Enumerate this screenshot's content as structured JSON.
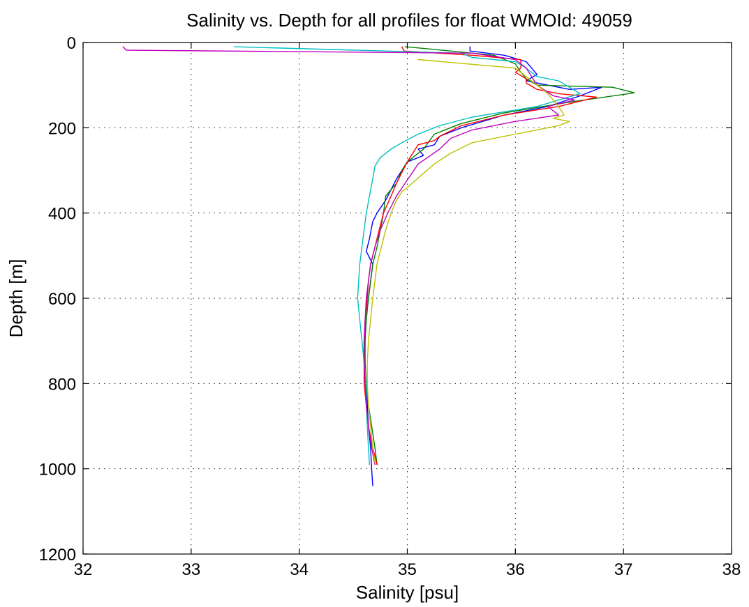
{
  "chart_data": {
    "type": "line",
    "title": "Salinity vs. Depth for all profiles for float WMOId: 49059",
    "xlabel": "Salinity [psu]",
    "ylabel": "Depth [m]",
    "xlim": [
      32,
      38
    ],
    "ylim": [
      0,
      1200
    ],
    "y_reversed": true,
    "grid": true,
    "x_ticks": [
      32,
      33,
      34,
      35,
      36,
      37,
      38
    ],
    "y_ticks": [
      0,
      200,
      400,
      600,
      800,
      1000,
      1200
    ],
    "series": [
      {
        "color": "#0000ff",
        "points": [
          [
            35.58,
            10
          ],
          [
            35.58,
            20
          ],
          [
            35.9,
            30
          ],
          [
            36.1,
            45
          ],
          [
            36.15,
            60
          ],
          [
            36.2,
            75
          ],
          [
            36.1,
            90
          ],
          [
            36.5,
            110
          ],
          [
            36.8,
            105
          ],
          [
            36.6,
            125
          ],
          [
            36.3,
            150
          ],
          [
            35.9,
            170
          ],
          [
            35.5,
            200
          ],
          [
            35.3,
            220
          ],
          [
            35.25,
            240
          ],
          [
            35.1,
            250
          ],
          [
            35.15,
            265
          ],
          [
            35.0,
            280
          ],
          [
            34.9,
            320
          ],
          [
            34.8,
            370
          ],
          [
            34.72,
            400
          ],
          [
            34.68,
            420
          ],
          [
            34.65,
            460
          ],
          [
            34.62,
            490
          ],
          [
            34.68,
            520
          ],
          [
            34.66,
            560
          ],
          [
            34.64,
            600
          ],
          [
            34.62,
            650
          ],
          [
            34.6,
            700
          ],
          [
            34.6,
            750
          ],
          [
            34.62,
            800
          ],
          [
            34.63,
            850
          ],
          [
            34.64,
            900
          ],
          [
            34.66,
            950
          ],
          [
            34.67,
            1000
          ],
          [
            34.68,
            1040
          ]
        ]
      },
      {
        "color": "#008000",
        "points": [
          [
            34.98,
            10
          ],
          [
            35.2,
            15
          ],
          [
            35.8,
            30
          ],
          [
            36.0,
            50
          ],
          [
            36.05,
            70
          ],
          [
            36.1,
            85
          ],
          [
            36.2,
            100
          ],
          [
            36.9,
            105
          ],
          [
            37.1,
            118
          ],
          [
            36.5,
            140
          ],
          [
            35.9,
            165
          ],
          [
            35.5,
            190
          ],
          [
            35.25,
            215
          ],
          [
            35.15,
            250
          ],
          [
            35.0,
            280
          ],
          [
            34.95,
            300
          ],
          [
            34.9,
            330
          ],
          [
            34.8,
            360
          ],
          [
            34.78,
            400
          ],
          [
            34.75,
            440
          ],
          [
            34.72,
            480
          ],
          [
            34.68,
            520
          ],
          [
            34.66,
            560
          ],
          [
            34.64,
            600
          ],
          [
            34.62,
            650
          ],
          [
            34.61,
            700
          ],
          [
            34.61,
            750
          ],
          [
            34.62,
            800
          ],
          [
            34.64,
            850
          ],
          [
            34.67,
            900
          ],
          [
            34.7,
            950
          ],
          [
            34.72,
            990
          ]
        ]
      },
      {
        "color": "#ff0000",
        "points": [
          [
            34.95,
            10
          ],
          [
            34.97,
            20
          ],
          [
            35.6,
            30
          ],
          [
            36.05,
            40
          ],
          [
            36.05,
            60
          ],
          [
            36.0,
            70
          ],
          [
            36.1,
            85
          ],
          [
            36.1,
            95
          ],
          [
            36.2,
            110
          ],
          [
            36.4,
            120
          ],
          [
            36.75,
            128
          ],
          [
            36.4,
            150
          ],
          [
            35.9,
            170
          ],
          [
            35.5,
            195
          ],
          [
            35.3,
            220
          ],
          [
            35.25,
            230
          ],
          [
            35.1,
            240
          ],
          [
            35.0,
            280
          ],
          [
            34.9,
            330
          ],
          [
            34.85,
            360
          ],
          [
            34.78,
            400
          ],
          [
            34.74,
            440
          ],
          [
            34.7,
            480
          ],
          [
            34.66,
            520
          ],
          [
            34.64,
            560
          ],
          [
            34.63,
            600
          ],
          [
            34.61,
            650
          ],
          [
            34.6,
            700
          ],
          [
            34.6,
            750
          ],
          [
            34.6,
            800
          ],
          [
            34.62,
            850
          ],
          [
            34.64,
            900
          ],
          [
            34.68,
            950
          ],
          [
            34.72,
            990
          ]
        ]
      },
      {
        "color": "#00bfbf",
        "points": [
          [
            33.4,
            10
          ],
          [
            35.5,
            25
          ],
          [
            35.6,
            35
          ],
          [
            36.0,
            45
          ],
          [
            36.1,
            60
          ],
          [
            36.2,
            80
          ],
          [
            36.4,
            90
          ],
          [
            36.5,
            105
          ],
          [
            36.6,
            120
          ],
          [
            36.2,
            150
          ],
          [
            35.6,
            175
          ],
          [
            35.3,
            195
          ],
          [
            35.1,
            215
          ],
          [
            34.95,
            235
          ],
          [
            34.85,
            250
          ],
          [
            34.75,
            270
          ],
          [
            34.7,
            290
          ],
          [
            34.68,
            320
          ],
          [
            34.65,
            360
          ],
          [
            34.62,
            400
          ],
          [
            34.6,
            440
          ],
          [
            34.58,
            480
          ],
          [
            34.56,
            520
          ],
          [
            34.55,
            560
          ],
          [
            34.54,
            600
          ],
          [
            34.56,
            650
          ],
          [
            34.58,
            700
          ],
          [
            34.6,
            750
          ],
          [
            34.62,
            800
          ],
          [
            34.62,
            850
          ],
          [
            34.63,
            900
          ],
          [
            34.64,
            950
          ],
          [
            34.65,
            990
          ]
        ]
      },
      {
        "color": "#bf00bf",
        "points": [
          [
            32.37,
            10
          ],
          [
            32.4,
            18
          ],
          [
            35.6,
            25
          ],
          [
            36.0,
            40
          ],
          [
            36.1,
            60
          ],
          [
            36.15,
            80
          ],
          [
            36.2,
            100
          ],
          [
            36.35,
            125
          ],
          [
            36.55,
            135
          ],
          [
            36.3,
            150
          ],
          [
            36.35,
            160
          ],
          [
            36.4,
            170
          ],
          [
            36.0,
            185
          ],
          [
            35.6,
            205
          ],
          [
            35.4,
            225
          ],
          [
            35.3,
            250
          ],
          [
            35.1,
            285
          ],
          [
            34.98,
            330
          ],
          [
            34.9,
            360
          ],
          [
            34.82,
            400
          ],
          [
            34.75,
            440
          ],
          [
            34.7,
            480
          ],
          [
            34.66,
            520
          ],
          [
            34.64,
            560
          ],
          [
            34.62,
            600
          ],
          [
            34.61,
            650
          ],
          [
            34.6,
            700
          ],
          [
            34.6,
            750
          ],
          [
            34.61,
            800
          ],
          [
            34.62,
            850
          ],
          [
            34.64,
            900
          ],
          [
            34.67,
            950
          ],
          [
            34.7,
            990
          ]
        ]
      },
      {
        "color": "#bfbf00",
        "points": [
          [
            35.1,
            40
          ],
          [
            36.0,
            60
          ],
          [
            36.1,
            80
          ],
          [
            36.2,
            100
          ],
          [
            36.3,
            120
          ],
          [
            36.4,
            150
          ],
          [
            36.45,
            170
          ],
          [
            36.35,
            178
          ],
          [
            36.5,
            185
          ],
          [
            36.4,
            195
          ],
          [
            36.0,
            215
          ],
          [
            35.6,
            235
          ],
          [
            35.4,
            260
          ],
          [
            35.25,
            285
          ],
          [
            35.0,
            340
          ],
          [
            34.95,
            350
          ],
          [
            34.9,
            370
          ],
          [
            34.85,
            400
          ],
          [
            34.8,
            440
          ],
          [
            34.76,
            480
          ],
          [
            34.72,
            520
          ],
          [
            34.7,
            560
          ],
          [
            34.68,
            600
          ],
          [
            34.66,
            650
          ],
          [
            34.64,
            700
          ],
          [
            34.63,
            750
          ],
          [
            34.63,
            800
          ],
          [
            34.64,
            850
          ],
          [
            34.66,
            900
          ],
          [
            34.68,
            950
          ],
          [
            34.7,
            985
          ]
        ]
      }
    ]
  }
}
